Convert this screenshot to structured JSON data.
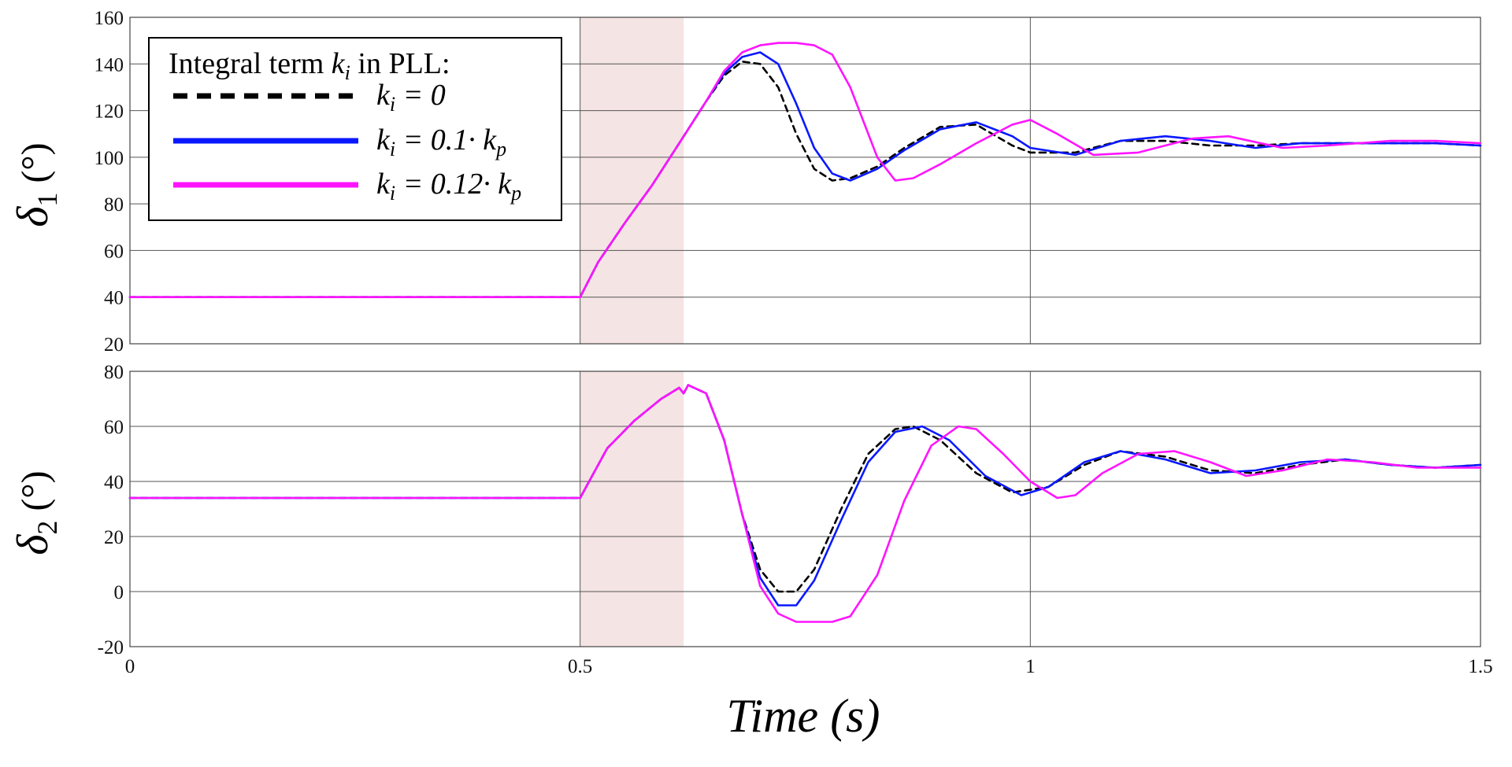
{
  "chart_data": [
    {
      "type": "line",
      "ylabel_symbol": "δ",
      "ylabel_sub": "1",
      "ylabel_unit": "(°)",
      "xlim": [
        0,
        1.5
      ],
      "ylim": [
        20,
        160
      ],
      "yticks": [
        20,
        40,
        60,
        80,
        100,
        120,
        140,
        160
      ],
      "xgrid": [
        0.5,
        1.0
      ],
      "shaded_interval": [
        0.5,
        0.615
      ],
      "legend": {
        "title_text": "Integral term ",
        "title_sym": "k",
        "title_sub": "i",
        "title_tail": " in PLL:",
        "placement": "top-left"
      },
      "series": [
        {
          "name_sym": "k",
          "name_sub": "i",
          "name_rest": " = 0",
          "name_tail_sym": "",
          "name_tail_sub": "",
          "color": "#000000",
          "dash": "dashed",
          "x": [
            0,
            0.5,
            0.52,
            0.55,
            0.58,
            0.6,
            0.62,
            0.64,
            0.66,
            0.68,
            0.7,
            0.72,
            0.74,
            0.76,
            0.78,
            0.8,
            0.83,
            0.86,
            0.9,
            0.94,
            0.98,
            1.0,
            1.05,
            1.1,
            1.15,
            1.2,
            1.25,
            1.3,
            1.35,
            1.4,
            1.45,
            1.5
          ],
          "y": [
            40,
            40,
            55,
            72,
            88,
            100,
            112,
            124,
            135,
            141,
            140,
            130,
            110,
            95,
            90,
            91,
            96,
            104,
            113,
            114,
            105,
            102,
            102,
            107,
            107,
            105,
            105,
            106,
            106,
            106,
            106,
            105
          ]
        },
        {
          "name_sym": "k",
          "name_sub": "i",
          "name_rest": " = 0.1· ",
          "name_tail_sym": "k",
          "name_tail_sub": "p",
          "color": "#0a18ff",
          "dash": "solid",
          "x": [
            0,
            0.5,
            0.52,
            0.55,
            0.58,
            0.6,
            0.62,
            0.64,
            0.66,
            0.68,
            0.7,
            0.72,
            0.74,
            0.76,
            0.78,
            0.8,
            0.83,
            0.86,
            0.9,
            0.94,
            0.98,
            1.0,
            1.05,
            1.1,
            1.15,
            1.2,
            1.25,
            1.3,
            1.35,
            1.4,
            1.45,
            1.5
          ],
          "y": [
            40,
            40,
            55,
            72,
            88,
            100,
            112,
            124,
            136,
            143,
            145,
            140,
            123,
            104,
            93,
            90,
            95,
            103,
            112,
            115,
            109,
            104,
            101,
            107,
            109,
            107,
            104,
            106,
            106,
            106,
            106,
            105
          ]
        },
        {
          "name_sym": "k",
          "name_sub": "i",
          "name_rest": " = 0.12· ",
          "name_tail_sym": "k",
          "name_tail_sub": "p",
          "color": "#ff14ff",
          "dash": "solid",
          "x": [
            0,
            0.5,
            0.52,
            0.55,
            0.58,
            0.6,
            0.62,
            0.64,
            0.66,
            0.68,
            0.7,
            0.72,
            0.74,
            0.76,
            0.78,
            0.8,
            0.83,
            0.85,
            0.87,
            0.9,
            0.94,
            0.98,
            1.0,
            1.03,
            1.07,
            1.12,
            1.18,
            1.22,
            1.28,
            1.33,
            1.4,
            1.45,
            1.5
          ],
          "y": [
            40,
            40,
            55,
            72,
            88,
            100,
            112,
            124,
            137,
            145,
            148,
            149,
            149,
            148,
            144,
            130,
            100,
            90,
            91,
            97,
            106,
            114,
            116,
            110,
            101,
            102,
            108,
            109,
            104,
            105,
            107,
            107,
            106
          ]
        }
      ]
    },
    {
      "type": "line",
      "ylabel_symbol": "δ",
      "ylabel_sub": "2",
      "ylabel_unit": "(°)",
      "xlabel": "Time",
      "xlabel_unit": "(s)",
      "xlim": [
        0,
        1.5
      ],
      "ylim": [
        -20,
        80
      ],
      "yticks": [
        -20,
        0,
        20,
        40,
        60,
        80
      ],
      "xticks": [
        0,
        0.5,
        1,
        1.5
      ],
      "xtick_labels": [
        "0",
        "0.5",
        "1",
        "1.5"
      ],
      "xgrid": [
        0.5,
        1.0
      ],
      "shaded_interval": [
        0.5,
        0.615
      ],
      "series": [
        {
          "name": "ki = 0",
          "color": "#000000",
          "dash": "dashed",
          "x": [
            0,
            0.5,
            0.51,
            0.53,
            0.56,
            0.59,
            0.61,
            0.615,
            0.62,
            0.64,
            0.66,
            0.68,
            0.7,
            0.72,
            0.74,
            0.76,
            0.79,
            0.82,
            0.85,
            0.87,
            0.9,
            0.94,
            0.98,
            1.02,
            1.06,
            1.1,
            1.15,
            1.2,
            1.25,
            1.3,
            1.35,
            1.4,
            1.45,
            1.5
          ],
          "y": [
            34,
            34,
            40,
            52,
            62,
            70,
            74,
            72,
            75,
            72,
            55,
            28,
            8,
            0,
            0,
            8,
            30,
            50,
            59,
            60,
            55,
            43,
            36,
            38,
            46,
            51,
            49,
            44,
            43,
            46,
            48,
            46,
            45,
            46
          ]
        },
        {
          "name": "ki = 0.1·kp",
          "color": "#0a18ff",
          "dash": "solid",
          "x": [
            0,
            0.5,
            0.51,
            0.53,
            0.56,
            0.59,
            0.61,
            0.615,
            0.62,
            0.64,
            0.66,
            0.68,
            0.7,
            0.72,
            0.74,
            0.76,
            0.79,
            0.82,
            0.85,
            0.88,
            0.91,
            0.95,
            0.99,
            1.02,
            1.06,
            1.1,
            1.15,
            1.2,
            1.25,
            1.3,
            1.35,
            1.4,
            1.45,
            1.5
          ],
          "y": [
            34,
            34,
            40,
            52,
            62,
            70,
            74,
            72,
            75,
            72,
            55,
            28,
            5,
            -5,
            -5,
            4,
            26,
            47,
            58,
            60,
            55,
            42,
            35,
            38,
            47,
            51,
            48,
            43,
            44,
            47,
            48,
            46,
            45,
            46
          ]
        },
        {
          "name": "ki = 0.12·kp",
          "color": "#ff14ff",
          "dash": "solid",
          "x": [
            0,
            0.5,
            0.51,
            0.53,
            0.56,
            0.59,
            0.61,
            0.615,
            0.62,
            0.64,
            0.66,
            0.68,
            0.7,
            0.72,
            0.74,
            0.76,
            0.78,
            0.8,
            0.83,
            0.86,
            0.89,
            0.92,
            0.94,
            0.97,
            1.0,
            1.03,
            1.05,
            1.08,
            1.12,
            1.16,
            1.2,
            1.24,
            1.28,
            1.33,
            1.38,
            1.43,
            1.5
          ],
          "y": [
            34,
            34,
            40,
            52,
            62,
            70,
            74,
            72,
            75,
            72,
            55,
            28,
            2,
            -8,
            -11,
            -11,
            -11,
            -9,
            6,
            33,
            53,
            60,
            59,
            50,
            40,
            34,
            35,
            43,
            50,
            51,
            47,
            42,
            44,
            48,
            47,
            45,
            45
          ]
        }
      ]
    }
  ]
}
